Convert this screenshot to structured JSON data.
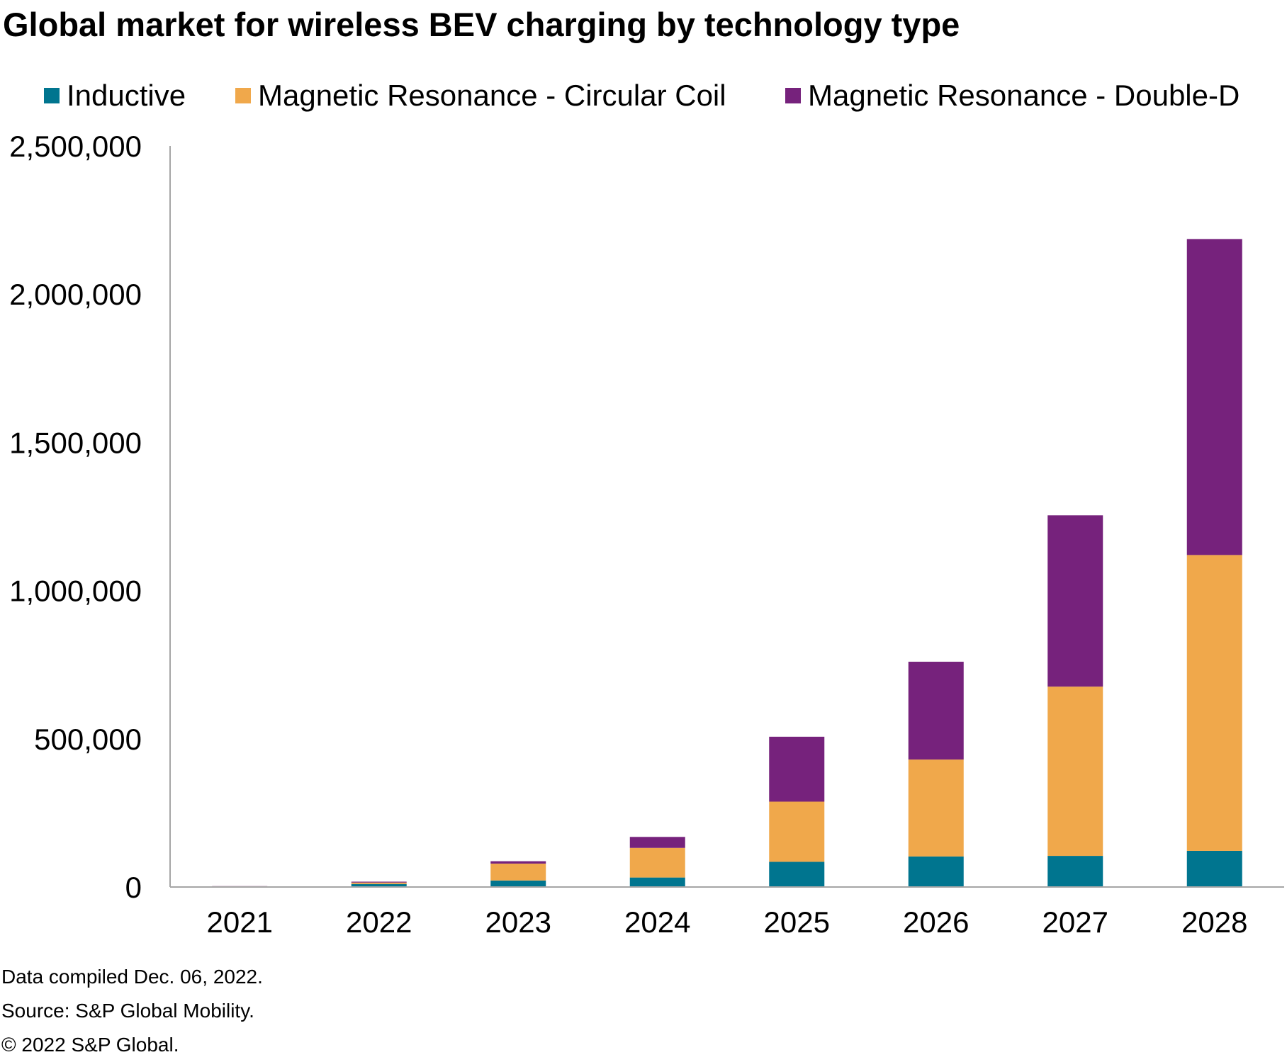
{
  "title": "Global market for wireless BEV charging by technology type",
  "legend": {
    "items": [
      {
        "label": "Inductive",
        "color": "#00758f"
      },
      {
        "label": "Magnetic Resonance - Circular Coil",
        "color": "#f0a84b"
      },
      {
        "label": "Magnetic Resonance - Double-D",
        "color": "#76227c"
      }
    ]
  },
  "chart_data": {
    "type": "bar",
    "stacked": true,
    "title": "Global market for wireless BEV charging by technology type",
    "xlabel": "",
    "ylabel": "",
    "categories": [
      "2021",
      "2022",
      "2023",
      "2024",
      "2025",
      "2026",
      "2027",
      "2028"
    ],
    "series": [
      {
        "name": "Inductive",
        "color": "#00758f",
        "values": [
          1500,
          10000,
          22000,
          32000,
          85000,
          103000,
          105000,
          122000
        ]
      },
      {
        "name": "Magnetic Resonance - Circular Coil",
        "color": "#f0a84b",
        "values": [
          1000,
          5000,
          57000,
          100000,
          203000,
          327000,
          571000,
          998000
        ]
      },
      {
        "name": "Magnetic Resonance - Double-D",
        "color": "#76227c",
        "values": [
          500,
          3000,
          8000,
          37000,
          219000,
          330000,
          578000,
          1066000
        ]
      }
    ],
    "ylim": [
      0,
      2500000
    ],
    "yticks": [
      0,
      500000,
      1000000,
      1500000,
      2000000,
      2500000
    ],
    "ytick_labels": [
      "0",
      "500,000",
      "1,000,000",
      "1,500,000",
      "2,000,000",
      "2,500,000"
    ],
    "grid": false,
    "legend_position": "top"
  },
  "footnotes": [
    "Data compiled Dec. 06, 2022.",
    "Source: S&P Global Mobility.",
    "© 2022 S&P Global."
  ]
}
